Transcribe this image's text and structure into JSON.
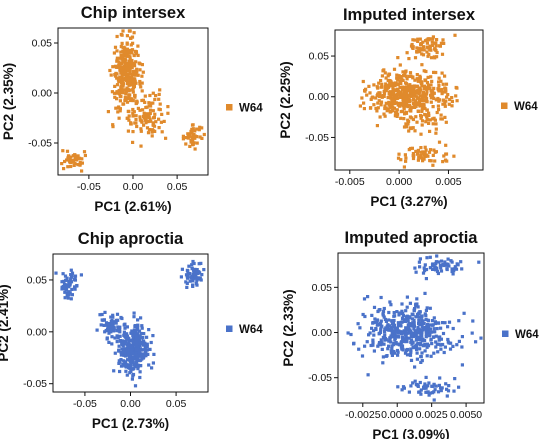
{
  "chart_data": [
    {
      "type": "scatter",
      "title": "Chip intersex",
      "xlabel": "PC1 (2.61%)",
      "ylabel": "PC2 (2.35%)",
      "xlim": [
        -0.085,
        0.085
      ],
      "ylim": [
        -0.082,
        0.065
      ],
      "xticks": [
        -0.05,
        0.0,
        0.05
      ],
      "xtick_labels": [
        "-0.05",
        "0.00",
        "0.05"
      ],
      "yticks": [
        -0.05,
        0.0,
        0.05
      ],
      "ytick_labels": [
        "-0.05",
        "0.00",
        "0.05"
      ],
      "color": "#E08A2C",
      "legend": "right",
      "series": [
        {
          "name": "W64",
          "clusters": [
            {
              "cx": -0.007,
              "cy": 0.018,
              "sx": 0.008,
              "sy": 0.018,
              "n": 320
            },
            {
              "cx": 0.018,
              "cy": -0.022,
              "sx": 0.01,
              "sy": 0.012,
              "n": 90
            },
            {
              "cx": 0.068,
              "cy": -0.043,
              "sx": 0.005,
              "sy": 0.005,
              "n": 45
            },
            {
              "cx": -0.068,
              "cy": -0.067,
              "sx": 0.006,
              "sy": 0.005,
              "n": 45
            }
          ]
        }
      ]
    },
    {
      "type": "scatter",
      "title": "Imputed intersex",
      "xlabel": "PC1 (3.27%)",
      "ylabel": "PC2 (2.25%)",
      "xlim": [
        -0.0065,
        0.0085
      ],
      "ylim": [
        -0.09,
        0.082
      ],
      "xticks": [
        -0.005,
        0.0,
        0.005
      ],
      "xtick_labels": [
        "-0.005",
        "0.000",
        "0.005"
      ],
      "yticks": [
        -0.05,
        0.0,
        0.05
      ],
      "ytick_labels": [
        "-0.05",
        "0.00",
        "0.05"
      ],
      "color": "#E08A2C",
      "legend": "right",
      "series": [
        {
          "name": "W64",
          "clusters": [
            {
              "cx": 0.001,
              "cy": 0.002,
              "sx": 0.002,
              "sy": 0.014,
              "n": 460
            },
            {
              "cx": 0.003,
              "cy": 0.062,
              "sx": 0.0011,
              "sy": 0.007,
              "n": 70
            },
            {
              "cx": 0.0025,
              "cy": -0.072,
              "sx": 0.0012,
              "sy": 0.005,
              "n": 60
            },
            {
              "cx": 0.002,
              "cy": -0.03,
              "sx": 0.0012,
              "sy": 0.006,
              "n": 45
            }
          ]
        }
      ]
    },
    {
      "type": "scatter",
      "title": "Chip aproctia",
      "xlabel": "PC1 (2.73%)",
      "ylabel": "PC2 (2.41%)",
      "xlim": [
        -0.085,
        0.085
      ],
      "ylim": [
        -0.058,
        0.075
      ],
      "xticks": [
        -0.05,
        0.0,
        0.05
      ],
      "xtick_labels": [
        "-0.05",
        "0.00",
        "0.05"
      ],
      "yticks": [
        -0.05,
        0.0,
        0.05
      ],
      "ytick_labels": [
        "-0.05",
        "0.00",
        "0.05"
      ],
      "color": "#4A72C9",
      "legend": "right",
      "series": [
        {
          "name": "W64",
          "clusters": [
            {
              "cx": 0.002,
              "cy": -0.018,
              "sx": 0.008,
              "sy": 0.012,
              "n": 320
            },
            {
              "cx": -0.022,
              "cy": 0.006,
              "sx": 0.007,
              "sy": 0.008,
              "n": 70
            },
            {
              "cx": -0.067,
              "cy": 0.046,
              "sx": 0.005,
              "sy": 0.006,
              "n": 55
            },
            {
              "cx": 0.068,
              "cy": 0.056,
              "sx": 0.006,
              "sy": 0.006,
              "n": 60
            }
          ]
        }
      ]
    },
    {
      "type": "scatter",
      "title": "Imputed aproctia",
      "xlabel": "PC1 (3.09%)",
      "ylabel": "PC2 (2.33%)",
      "xlim": [
        -0.0043,
        0.0063
      ],
      "ylim": [
        -0.078,
        0.088
      ],
      "xticks": [
        -0.0025,
        0.0,
        0.0025,
        0.005
      ],
      "xtick_labels": [
        "-0.0025",
        "0.0000",
        "0.0025",
        "0.0050"
      ],
      "yticks": [
        -0.05,
        0.0,
        0.05
      ],
      "ytick_labels": [
        "-0.05",
        "0.00",
        "0.05"
      ],
      "color": "#4A72C9",
      "legend": "right",
      "series": [
        {
          "name": "W64",
          "clusters": [
            {
              "cx": 0.0008,
              "cy": 0.0,
              "sx": 0.0016,
              "sy": 0.015,
              "n": 460
            },
            {
              "cx": 0.0032,
              "cy": 0.073,
              "sx": 0.0009,
              "sy": 0.005,
              "n": 60
            },
            {
              "cx": 0.0022,
              "cy": -0.061,
              "sx": 0.0011,
              "sy": 0.005,
              "n": 55
            }
          ]
        }
      ]
    }
  ]
}
